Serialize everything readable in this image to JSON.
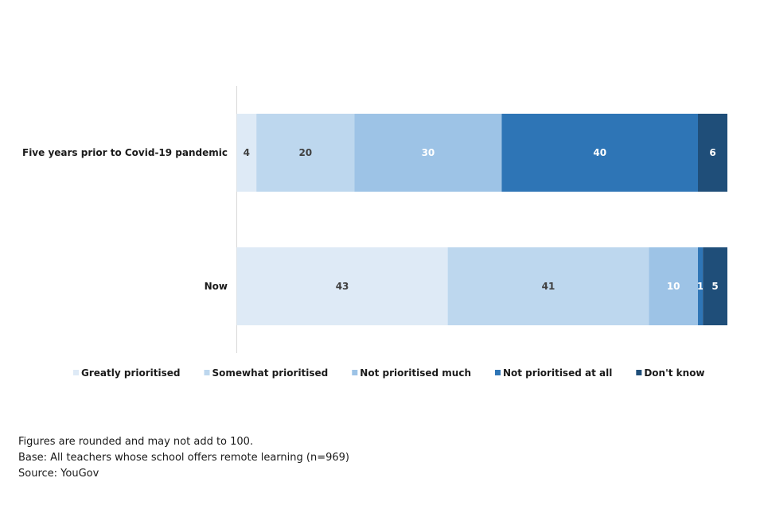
{
  "chart_data": {
    "type": "bar",
    "orientation": "horizontal",
    "stacked": true,
    "title": "",
    "xlabel": "",
    "ylabel": "",
    "xlim": [
      0,
      100
    ],
    "categories": [
      "Five years prior to Covid-19 pandemic",
      "Now"
    ],
    "series": [
      {
        "name": "Greatly prioritised",
        "color": "#DEEAF6",
        "values": [
          4,
          43
        ]
      },
      {
        "name": "Somewhat prioritised",
        "color": "#BDD7EE",
        "values": [
          20,
          41
        ]
      },
      {
        "name": "Not prioritised much",
        "color": "#9DC3E6",
        "values": [
          30,
          10
        ]
      },
      {
        "name": "Not prioritised at all",
        "color": "#2E75B6",
        "values": [
          40,
          1
        ]
      },
      {
        "name": "Don't know",
        "color": "#1F4E79",
        "values": [
          6,
          5
        ]
      }
    ],
    "label_colors": [
      "#404040",
      "#404040",
      "#ffffff",
      "#ffffff",
      "#ffffff"
    ],
    "legend_position": "bottom",
    "grid": false
  },
  "footnotes": {
    "line1": "Figures are rounded and may not add to 100.",
    "line2": "Base: All teachers whose school offers remote learning  (n=969)",
    "line3": "Source: YouGov"
  }
}
